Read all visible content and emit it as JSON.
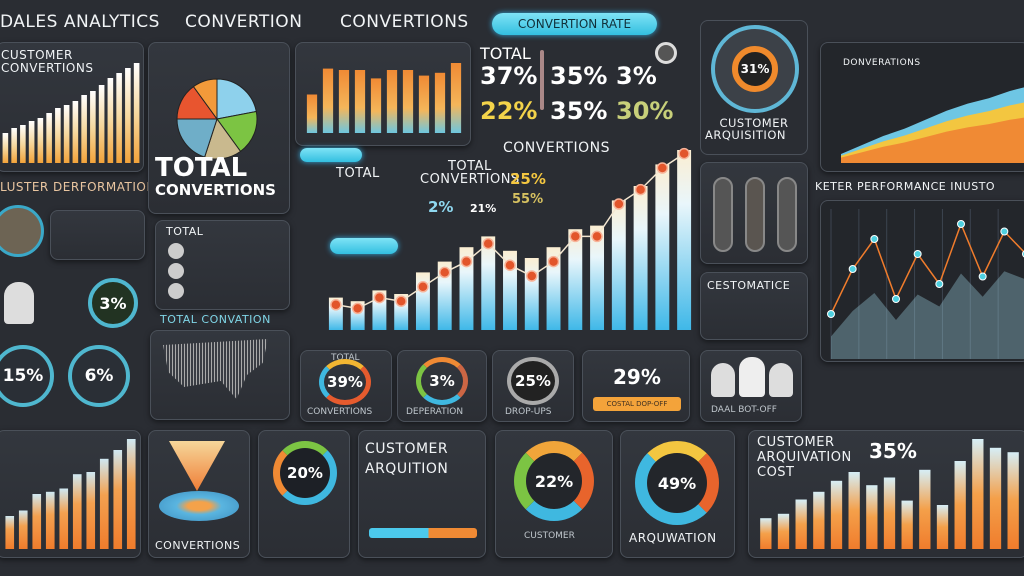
{
  "header": {
    "title": "DALES ANALYTICS",
    "item1": "CONVERTION",
    "item2": "CONVERTIONS",
    "pill": "CONVERTION RATE"
  },
  "customer_conversions": {
    "title": "CUSTOMER\nCONVERTIONS",
    "footer": "LUSTER DERFORMATIONS"
  },
  "pie_panel": {
    "title1": "TOTAL",
    "title2": "CONVERTIONS"
  },
  "kpis": {
    "label": "TOTAL",
    "values": [
      "37%",
      "35%",
      "3%",
      "22%",
      "35%",
      "30%"
    ]
  },
  "main_chart": {
    "title": "CONVERTIONS",
    "total": "TOTAL",
    "total_conv1": "TOTAL",
    "total_conv2": "CONVERTIONS",
    "pct_a": "25%",
    "pct_b": "55%",
    "pct_c": "2%",
    "pct_d": "21%",
    "pct_e": "2%",
    "pct_top": "29%"
  },
  "acquisition_gauge": {
    "value": "31%",
    "label1": "CUSTOMER",
    "label2": "ARQUISITION"
  },
  "right_area": {
    "title": "DONVERATIONS"
  },
  "right_line": {
    "title": "KETER PERFORMANCE INUSTO"
  },
  "figures_panel": {
    "title": "CESTOMATICE"
  },
  "left_middle": {
    "octagon": "3%",
    "oct1": "15%",
    "oct2": "6%"
  },
  "total_list": {
    "title": "TOTAL",
    "footer": "TOTAL CONVATION"
  },
  "donut_row": [
    {
      "value": "39%",
      "label": "CONVERTIONS",
      "top": "TOTAL"
    },
    {
      "value": "3%",
      "label": "DEPERATION"
    },
    {
      "value": "25%",
      "label": "DROP-UPS"
    },
    {
      "value": "29%",
      "label": "COSTAL DOP-OFF"
    },
    {
      "label": "DAAL BOT-OFF"
    }
  ],
  "bottom": {
    "funnel_label": "CONVERTIONS",
    "donut1": "20%",
    "acq_title1": "CUSTOMER",
    "acq_title2": "ARQUITION",
    "donut2": "22%",
    "donut2_label": "CUSTOMER",
    "donut3": "49%",
    "donut3_label": "ARQUWATION",
    "cost_title1": "CUSTOMER",
    "cost_title2": "ARQUIVATION",
    "cost_title3": "COST",
    "cost_value": "35%"
  },
  "colors": {
    "bg": "#2a2d33",
    "cyan": "#4cc9ec",
    "orange": "#f28a34",
    "red": "#e05a2c",
    "yellow": "#f3c640",
    "green": "#7cc443"
  },
  "chart_data": [
    {
      "type": "bar",
      "name": "customer-conversions",
      "values": [
        30,
        35,
        38,
        42,
        45,
        50,
        55,
        58,
        62,
        68,
        72,
        78,
        85,
        90,
        95,
        100
      ]
    },
    {
      "type": "pie",
      "name": "pie",
      "values": [
        22,
        18,
        15,
        20,
        15,
        10
      ]
    },
    {
      "type": "bar",
      "name": "top-bars",
      "values": [
        55,
        92,
        90,
        90,
        78,
        90,
        90,
        82,
        86,
        100
      ]
    },
    {
      "type": "bar",
      "name": "main-bars",
      "values": [
        18,
        16,
        22,
        20,
        32,
        38,
        46,
        52,
        44,
        40,
        46,
        56,
        58,
        72,
        80,
        92,
        100
      ]
    },
    {
      "type": "line",
      "name": "main-line",
      "values": [
        14,
        12,
        18,
        16,
        24,
        32,
        38,
        48,
        36,
        30,
        38,
        52,
        52,
        70,
        78,
        90,
        98
      ]
    },
    {
      "type": "area",
      "name": "right-area",
      "values": [
        10,
        20,
        30,
        38,
        48,
        58,
        66,
        72,
        80,
        86
      ]
    },
    {
      "type": "line",
      "name": "right-line",
      "values": [
        30,
        60,
        80,
        40,
        70,
        50,
        90,
        55,
        85,
        70
      ]
    },
    {
      "type": "bar",
      "name": "bottom-left-bars",
      "values": [
        30,
        35,
        50,
        52,
        55,
        68,
        70,
        82,
        90,
        100
      ]
    },
    {
      "type": "bar",
      "name": "bottom-right-bars",
      "values": [
        28,
        32,
        45,
        52,
        62,
        70,
        58,
        65,
        44,
        72,
        40,
        80,
        100,
        92,
        88
      ]
    }
  ]
}
